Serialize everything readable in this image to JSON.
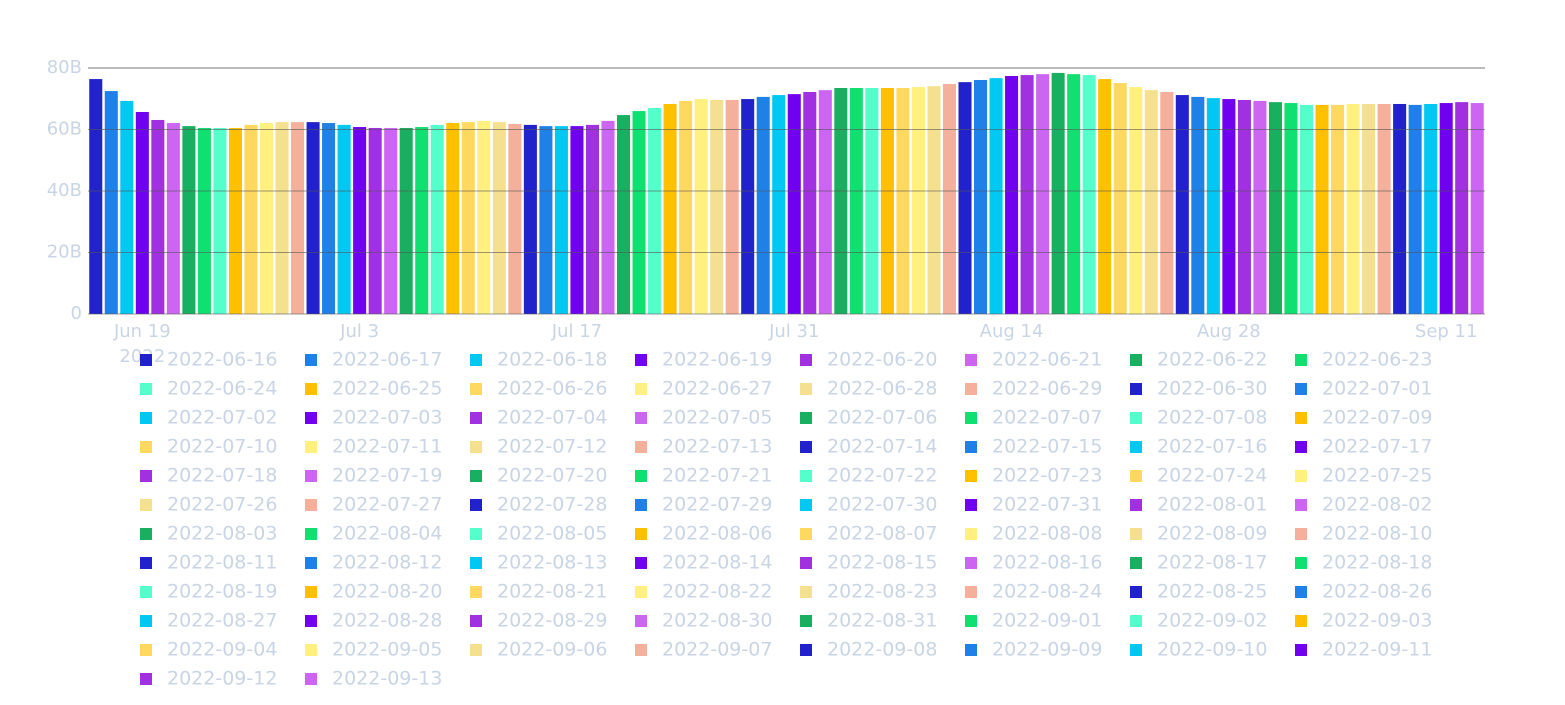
{
  "chart_data": {
    "type": "bar",
    "xlim": [
      "2022-06-15T12:00:00Z",
      "2022-09-13T12:00:00Z"
    ],
    "xticks": [
      {
        "value": "2022-06-19",
        "label": "Jun 19"
      },
      {
        "value": "2022-07-03",
        "label": "Jul 3"
      },
      {
        "value": "2022-07-17",
        "label": "Jul 17"
      },
      {
        "value": "2022-07-31",
        "label": "Jul 31"
      },
      {
        "value": "2022-08-14",
        "label": "Aug 14"
      },
      {
        "value": "2022-08-28",
        "label": "Aug 28"
      },
      {
        "value": "2022-09-11",
        "label": "Sep 11"
      }
    ],
    "x_year": "2022",
    "ylim": [
      0,
      80000000000.0
    ],
    "yticks": [
      {
        "value": 0,
        "label": "0"
      },
      {
        "value": 20000000000.0,
        "label": "20B"
      },
      {
        "value": 40000000000.0,
        "label": "40B"
      },
      {
        "value": 60000000000.0,
        "label": "60B"
      },
      {
        "value": 80000000000.0,
        "label": "80B"
      }
    ],
    "grid": true,
    "series": [
      {
        "name": "2022-06-16",
        "color": "#2222cc",
        "x": [
          "2022-06-16"
        ],
        "values": [
          76400000000.0
        ]
      },
      {
        "name": "2022-06-17",
        "color": "#1f80e8",
        "x": [
          "2022-06-17"
        ],
        "values": [
          72500000000.0
        ]
      },
      {
        "name": "2022-06-18",
        "color": "#00c8f2",
        "x": [
          "2022-06-18"
        ],
        "values": [
          69300000000.0
        ]
      },
      {
        "name": "2022-06-19",
        "color": "#7000f0",
        "x": [
          "2022-06-19"
        ],
        "values": [
          65700000000.0
        ]
      },
      {
        "name": "2022-06-20",
        "color": "#a030e0",
        "x": [
          "2022-06-20"
        ],
        "values": [
          63100000000.0
        ]
      },
      {
        "name": "2022-06-21",
        "color": "#cc66f2",
        "x": [
          "2022-06-21"
        ],
        "values": [
          62100000000.0
        ]
      },
      {
        "name": "2022-06-22",
        "color": "#18b060",
        "x": [
          "2022-06-22"
        ],
        "values": [
          61100000000.0
        ]
      },
      {
        "name": "2022-06-23",
        "color": "#10e070",
        "x": [
          "2022-06-23"
        ],
        "values": [
          60500000000.0
        ]
      },
      {
        "name": "2022-06-24",
        "color": "#55ffcc",
        "x": [
          "2022-06-24"
        ],
        "values": [
          60500000000.0
        ]
      },
      {
        "name": "2022-06-25",
        "color": "#ffc000",
        "x": [
          "2022-06-25"
        ],
        "values": [
          60500000000.0
        ]
      },
      {
        "name": "2022-06-26",
        "color": "#ffd860",
        "x": [
          "2022-06-26"
        ],
        "values": [
          61500000000.0
        ]
      },
      {
        "name": "2022-06-27",
        "color": "#fff080",
        "x": [
          "2022-06-27"
        ],
        "values": [
          62100000000.0
        ]
      },
      {
        "name": "2022-06-28",
        "color": "#f5e090",
        "x": [
          "2022-06-28"
        ],
        "values": [
          62400000000.0
        ]
      },
      {
        "name": "2022-06-29",
        "color": "#f4b09a",
        "x": [
          "2022-06-29"
        ],
        "values": [
          62400000000.0
        ]
      },
      {
        "name": "2022-06-30",
        "color": "#2222cc",
        "x": [
          "2022-06-30"
        ],
        "values": [
          62400000000.0
        ]
      },
      {
        "name": "2022-07-01",
        "color": "#1f80e8",
        "x": [
          "2022-07-01"
        ],
        "values": [
          62100000000.0
        ]
      },
      {
        "name": "2022-07-02",
        "color": "#00c8f2",
        "x": [
          "2022-07-02"
        ],
        "values": [
          61500000000.0
        ]
      },
      {
        "name": "2022-07-03",
        "color": "#7000f0",
        "x": [
          "2022-07-03"
        ],
        "values": [
          60800000000.0
        ]
      },
      {
        "name": "2022-07-04",
        "color": "#a030e0",
        "x": [
          "2022-07-04"
        ],
        "values": [
          60500000000.0
        ]
      },
      {
        "name": "2022-07-05",
        "color": "#cc66f2",
        "x": [
          "2022-07-05"
        ],
        "values": [
          60500000000.0
        ]
      },
      {
        "name": "2022-07-06",
        "color": "#18b060",
        "x": [
          "2022-07-06"
        ],
        "values": [
          60500000000.0
        ]
      },
      {
        "name": "2022-07-07",
        "color": "#10e070",
        "x": [
          "2022-07-07"
        ],
        "values": [
          60800000000.0
        ]
      },
      {
        "name": "2022-07-08",
        "color": "#55ffcc",
        "x": [
          "2022-07-08"
        ],
        "values": [
          61500000000.0
        ]
      },
      {
        "name": "2022-07-09",
        "color": "#ffc000",
        "x": [
          "2022-07-09"
        ],
        "values": [
          62100000000.0
        ]
      },
      {
        "name": "2022-07-10",
        "color": "#ffd860",
        "x": [
          "2022-07-10"
        ],
        "values": [
          62400000000.0
        ]
      },
      {
        "name": "2022-07-11",
        "color": "#fff080",
        "x": [
          "2022-07-11"
        ],
        "values": [
          62800000000.0
        ]
      },
      {
        "name": "2022-07-12",
        "color": "#f5e090",
        "x": [
          "2022-07-12"
        ],
        "values": [
          62400000000.0
        ]
      },
      {
        "name": "2022-07-13",
        "color": "#f4b09a",
        "x": [
          "2022-07-13"
        ],
        "values": [
          61800000000.0
        ]
      },
      {
        "name": "2022-07-14",
        "color": "#2222cc",
        "x": [
          "2022-07-14"
        ],
        "values": [
          61500000000.0
        ]
      },
      {
        "name": "2022-07-15",
        "color": "#1f80e8",
        "x": [
          "2022-07-15"
        ],
        "values": [
          61100000000.0
        ]
      },
      {
        "name": "2022-07-16",
        "color": "#00c8f2",
        "x": [
          "2022-07-16"
        ],
        "values": [
          61100000000.0
        ]
      },
      {
        "name": "2022-07-17",
        "color": "#7000f0",
        "x": [
          "2022-07-17"
        ],
        "values": [
          61100000000.0
        ]
      },
      {
        "name": "2022-07-18",
        "color": "#a030e0",
        "x": [
          "2022-07-18"
        ],
        "values": [
          61500000000.0
        ]
      },
      {
        "name": "2022-07-19",
        "color": "#cc66f2",
        "x": [
          "2022-07-19"
        ],
        "values": [
          62800000000.0
        ]
      },
      {
        "name": "2022-07-20",
        "color": "#18b060",
        "x": [
          "2022-07-20"
        ],
        "values": [
          64700000000.0
        ]
      },
      {
        "name": "2022-07-21",
        "color": "#10e070",
        "x": [
          "2022-07-21"
        ],
        "values": [
          66000000000.0
        ]
      },
      {
        "name": "2022-07-22",
        "color": "#55ffcc",
        "x": [
          "2022-07-22"
        ],
        "values": [
          67000000000.0
        ]
      },
      {
        "name": "2022-07-23",
        "color": "#ffc000",
        "x": [
          "2022-07-23"
        ],
        "values": [
          68300000000.0
        ]
      },
      {
        "name": "2022-07-24",
        "color": "#ffd860",
        "x": [
          "2022-07-24"
        ],
        "values": [
          69300000000.0
        ]
      },
      {
        "name": "2022-07-25",
        "color": "#fff080",
        "x": [
          "2022-07-25"
        ],
        "values": [
          69900000000.0
        ]
      },
      {
        "name": "2022-07-26",
        "color": "#f5e090",
        "x": [
          "2022-07-26"
        ],
        "values": [
          69600000000.0
        ]
      },
      {
        "name": "2022-07-27",
        "color": "#f4b09a",
        "x": [
          "2022-07-27"
        ],
        "values": [
          69600000000.0
        ]
      },
      {
        "name": "2022-07-28",
        "color": "#2222cc",
        "x": [
          "2022-07-28"
        ],
        "values": [
          69900000000.0
        ]
      },
      {
        "name": "2022-07-29",
        "color": "#1f80e8",
        "x": [
          "2022-07-29"
        ],
        "values": [
          70600000000.0
        ]
      },
      {
        "name": "2022-07-30",
        "color": "#00c8f2",
        "x": [
          "2022-07-30"
        ],
        "values": [
          71200000000.0
        ]
      },
      {
        "name": "2022-07-31",
        "color": "#7000f0",
        "x": [
          "2022-07-31"
        ],
        "values": [
          71500000000.0
        ]
      },
      {
        "name": "2022-08-01",
        "color": "#a030e0",
        "x": [
          "2022-08-01"
        ],
        "values": [
          72200000000.0
        ]
      },
      {
        "name": "2022-08-02",
        "color": "#cc66f2",
        "x": [
          "2022-08-02"
        ],
        "values": [
          72800000000.0
        ]
      },
      {
        "name": "2022-08-03",
        "color": "#18b060",
        "x": [
          "2022-08-03"
        ],
        "values": [
          73500000000.0
        ]
      },
      {
        "name": "2022-08-04",
        "color": "#10e070",
        "x": [
          "2022-08-04"
        ],
        "values": [
          73500000000.0
        ]
      },
      {
        "name": "2022-08-05",
        "color": "#55ffcc",
        "x": [
          "2022-08-05"
        ],
        "values": [
          73500000000.0
        ]
      },
      {
        "name": "2022-08-06",
        "color": "#ffc000",
        "x": [
          "2022-08-06"
        ],
        "values": [
          73500000000.0
        ]
      },
      {
        "name": "2022-08-07",
        "color": "#ffd860",
        "x": [
          "2022-08-07"
        ],
        "values": [
          73500000000.0
        ]
      },
      {
        "name": "2022-08-08",
        "color": "#fff080",
        "x": [
          "2022-08-08"
        ],
        "values": [
          73800000000.0
        ]
      },
      {
        "name": "2022-08-09",
        "color": "#f5e090",
        "x": [
          "2022-08-09"
        ],
        "values": [
          74100000000.0
        ]
      },
      {
        "name": "2022-08-10",
        "color": "#f4b09a",
        "x": [
          "2022-08-10"
        ],
        "values": [
          74800000000.0
        ]
      },
      {
        "name": "2022-08-11",
        "color": "#2222cc",
        "x": [
          "2022-08-11"
        ],
        "values": [
          75400000000.0
        ]
      },
      {
        "name": "2022-08-12",
        "color": "#1f80e8",
        "x": [
          "2022-08-12"
        ],
        "values": [
          76100000000.0
        ]
      },
      {
        "name": "2022-08-13",
        "color": "#00c8f2",
        "x": [
          "2022-08-13"
        ],
        "values": [
          76700000000.0
        ]
      },
      {
        "name": "2022-08-14",
        "color": "#7000f0",
        "x": [
          "2022-08-14"
        ],
        "values": [
          77400000000.0
        ]
      },
      {
        "name": "2022-08-15",
        "color": "#a030e0",
        "x": [
          "2022-08-15"
        ],
        "values": [
          77700000000.0
        ]
      },
      {
        "name": "2022-08-16",
        "color": "#cc66f2",
        "x": [
          "2022-08-16"
        ],
        "values": [
          78000000000.0
        ]
      },
      {
        "name": "2022-08-17",
        "color": "#18b060",
        "x": [
          "2022-08-17"
        ],
        "values": [
          78400000000.0
        ]
      },
      {
        "name": "2022-08-18",
        "color": "#10e070",
        "x": [
          "2022-08-18"
        ],
        "values": [
          78000000000.0
        ]
      },
      {
        "name": "2022-08-19",
        "color": "#55ffcc",
        "x": [
          "2022-08-19"
        ],
        "values": [
          77700000000.0
        ]
      },
      {
        "name": "2022-08-20",
        "color": "#ffc000",
        "x": [
          "2022-08-20"
        ],
        "values": [
          76400000000.0
        ]
      },
      {
        "name": "2022-08-21",
        "color": "#ffd860",
        "x": [
          "2022-08-21"
        ],
        "values": [
          75100000000.0
        ]
      },
      {
        "name": "2022-08-22",
        "color": "#fff080",
        "x": [
          "2022-08-22"
        ],
        "values": [
          73800000000.0
        ]
      },
      {
        "name": "2022-08-23",
        "color": "#f5e090",
        "x": [
          "2022-08-23"
        ],
        "values": [
          72800000000.0
        ]
      },
      {
        "name": "2022-08-24",
        "color": "#f4b09a",
        "x": [
          "2022-08-24"
        ],
        "values": [
          72200000000.0
        ]
      },
      {
        "name": "2022-08-25",
        "color": "#2222cc",
        "x": [
          "2022-08-25"
        ],
        "values": [
          71200000000.0
        ]
      },
      {
        "name": "2022-08-26",
        "color": "#1f80e8",
        "x": [
          "2022-08-26"
        ],
        "values": [
          70600000000.0
        ]
      },
      {
        "name": "2022-08-27",
        "color": "#00c8f2",
        "x": [
          "2022-08-27"
        ],
        "values": [
          70200000000.0
        ]
      },
      {
        "name": "2022-08-28",
        "color": "#7000f0",
        "x": [
          "2022-08-28"
        ],
        "values": [
          69900000000.0
        ]
      },
      {
        "name": "2022-08-29",
        "color": "#a030e0",
        "x": [
          "2022-08-29"
        ],
        "values": [
          69600000000.0
        ]
      },
      {
        "name": "2022-08-30",
        "color": "#cc66f2",
        "x": [
          "2022-08-30"
        ],
        "values": [
          69300000000.0
        ]
      },
      {
        "name": "2022-08-31",
        "color": "#18b060",
        "x": [
          "2022-08-31"
        ],
        "values": [
          68900000000.0
        ]
      },
      {
        "name": "2022-09-01",
        "color": "#10e070",
        "x": [
          "2022-09-01"
        ],
        "values": [
          68600000000.0
        ]
      },
      {
        "name": "2022-09-02",
        "color": "#55ffcc",
        "x": [
          "2022-09-02"
        ],
        "values": [
          68000000000.0
        ]
      },
      {
        "name": "2022-09-03",
        "color": "#ffc000",
        "x": [
          "2022-09-03"
        ],
        "values": [
          68000000000.0
        ]
      },
      {
        "name": "2022-09-04",
        "color": "#ffd860",
        "x": [
          "2022-09-04"
        ],
        "values": [
          68000000000.0
        ]
      },
      {
        "name": "2022-09-05",
        "color": "#fff080",
        "x": [
          "2022-09-05"
        ],
        "values": [
          68300000000.0
        ]
      },
      {
        "name": "2022-09-06",
        "color": "#f5e090",
        "x": [
          "2022-09-06"
        ],
        "values": [
          68300000000.0
        ]
      },
      {
        "name": "2022-09-07",
        "color": "#f4b09a",
        "x": [
          "2022-09-07"
        ],
        "values": [
          68300000000.0
        ]
      },
      {
        "name": "2022-09-08",
        "color": "#2222cc",
        "x": [
          "2022-09-08"
        ],
        "values": [
          68300000000.0
        ]
      },
      {
        "name": "2022-09-09",
        "color": "#1f80e8",
        "x": [
          "2022-09-09"
        ],
        "values": [
          68000000000.0
        ]
      },
      {
        "name": "2022-09-10",
        "color": "#00c8f2",
        "x": [
          "2022-09-10"
        ],
        "values": [
          68300000000.0
        ]
      },
      {
        "name": "2022-09-11",
        "color": "#7000f0",
        "x": [
          "2022-09-11"
        ],
        "values": [
          68600000000.0
        ]
      },
      {
        "name": "2022-09-12",
        "color": "#a030e0",
        "x": [
          "2022-09-12"
        ],
        "values": [
          68900000000.0
        ]
      },
      {
        "name": "2022-09-13",
        "color": "#cc66f2",
        "x": [
          "2022-09-13"
        ],
        "values": [
          68600000000.0
        ]
      }
    ]
  }
}
